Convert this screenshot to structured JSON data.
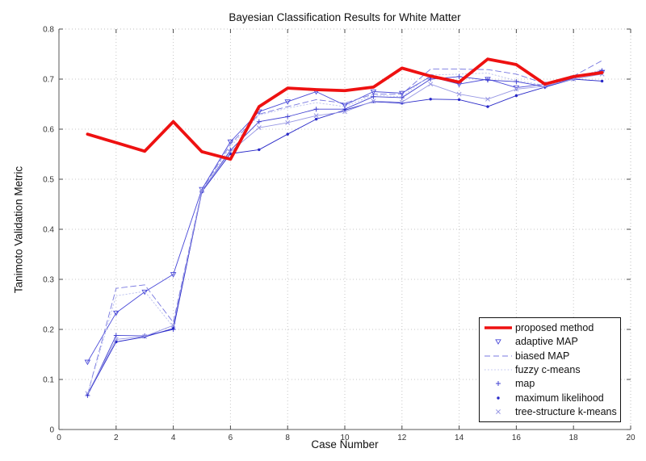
{
  "chart_data": {
    "type": "line",
    "title": "Bayesian Classification Results for White Matter",
    "xlabel": "Case Number",
    "ylabel": "Tanimoto Validation Metric",
    "xlim": [
      0,
      20
    ],
    "ylim": [
      0,
      0.8
    ],
    "grid": "dotted",
    "legend_position": "bottom-right",
    "x_tick_values": [
      0,
      2,
      4,
      6,
      8,
      10,
      12,
      14,
      16,
      18,
      20
    ],
    "x_tick_labels": [
      "0",
      "2",
      "4",
      "6",
      "8",
      "10",
      "12",
      "14",
      "16",
      "18",
      "20"
    ],
    "y_tick_values": [
      0,
      0.1,
      0.2,
      0.3,
      0.4,
      0.5,
      0.6,
      0.7,
      0.8
    ],
    "y_tick_labels": [
      "0",
      "0.1",
      "0.2",
      "0.3",
      "0.4",
      "0.5",
      "0.6",
      "0.7",
      "0.8"
    ],
    "x": [
      1,
      2,
      3,
      4,
      5,
      6,
      7,
      8,
      9,
      10,
      11,
      12,
      13,
      14,
      15,
      16,
      17,
      18,
      19
    ],
    "series": [
      {
        "label": "proposed method",
        "color": "#ee1111",
        "line": "solid",
        "width": 3.8,
        "marker": "none",
        "legend_sample": "line",
        "values": [
          0.59,
          0.573,
          0.556,
          0.615,
          0.555,
          0.54,
          0.645,
          0.682,
          0.679,
          0.677,
          0.684,
          0.722,
          0.706,
          0.694,
          0.74,
          0.729,
          0.69,
          0.705,
          0.713
        ]
      },
      {
        "label": "adaptive MAP",
        "color": "#4848d8",
        "line": "solid",
        "width": 0.9,
        "marker": "triangle-down",
        "legend_sample": "marker",
        "values": [
          0.135,
          0.233,
          0.275,
          0.31,
          0.48,
          0.575,
          0.635,
          0.655,
          0.675,
          0.648,
          0.675,
          0.672,
          0.705,
          0.69,
          0.7,
          0.683,
          0.69,
          0.703,
          0.714
        ]
      },
      {
        "label": "biased MAP",
        "color": "#7878e0",
        "line": "dashed",
        "width": 0.9,
        "marker": "none",
        "legend_sample": "line",
        "values": [
          0.07,
          0.282,
          0.289,
          0.214,
          0.478,
          0.57,
          0.63,
          0.645,
          0.659,
          0.652,
          0.67,
          0.67,
          0.72,
          0.72,
          0.719,
          0.71,
          0.691,
          0.706,
          0.737
        ]
      },
      {
        "label": "fuzzy c-means",
        "color": "#b9bfee",
        "line": "dotted",
        "width": 0.9,
        "marker": "none",
        "legend_sample": "line",
        "values": [
          0.07,
          0.267,
          0.276,
          0.205,
          0.477,
          0.565,
          0.628,
          0.642,
          0.653,
          0.645,
          0.668,
          0.665,
          0.708,
          0.71,
          0.712,
          0.697,
          0.688,
          0.701,
          0.72
        ]
      },
      {
        "label": "map",
        "color": "#4343d2",
        "line": "solid",
        "width": 0.9,
        "marker": "plus",
        "legend_sample": "marker",
        "values": [
          0.068,
          0.188,
          0.187,
          0.2,
          0.476,
          0.558,
          0.615,
          0.625,
          0.64,
          0.64,
          0.665,
          0.663,
          0.7,
          0.705,
          0.698,
          0.695,
          0.685,
          0.702,
          0.717
        ]
      },
      {
        "label": "maximum likelihood",
        "color": "#2828c8",
        "line": "solid",
        "width": 0.9,
        "marker": "dot",
        "legend_sample": "marker",
        "values": [
          0.07,
          0.175,
          0.185,
          0.202,
          0.475,
          0.551,
          0.559,
          0.59,
          0.62,
          0.638,
          0.655,
          0.652,
          0.66,
          0.659,
          0.645,
          0.667,
          0.684,
          0.7,
          0.696
        ]
      },
      {
        "label": "tree-structure k-means",
        "color": "#9898e4",
        "line": "solid",
        "width": 0.9,
        "marker": "x",
        "legend_sample": "marker",
        "values": [
          0.072,
          0.18,
          0.186,
          0.208,
          0.477,
          0.555,
          0.603,
          0.613,
          0.627,
          0.635,
          0.656,
          0.654,
          0.69,
          0.67,
          0.66,
          0.68,
          0.686,
          0.7,
          0.71
        ]
      }
    ]
  }
}
